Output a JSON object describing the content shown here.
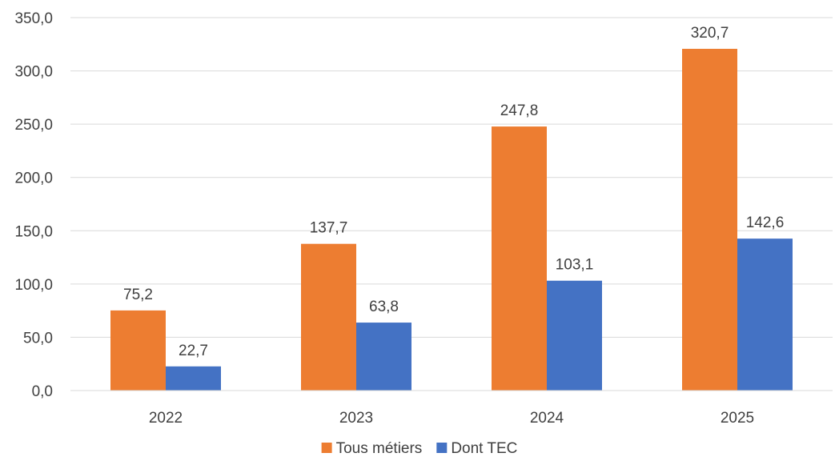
{
  "chart_data": {
    "type": "bar",
    "categories": [
      "2022",
      "2023",
      "2024",
      "2025"
    ],
    "series": [
      {
        "name": "Tous métiers",
        "color": "#ED7D31",
        "values": [
          75.2,
          137.7,
          247.8,
          320.7
        ],
        "labels": [
          "75,2",
          "137,7",
          "247,8",
          "320,7"
        ]
      },
      {
        "name": "Dont TEC",
        "color": "#4472C4",
        "values": [
          22.7,
          63.8,
          103.1,
          142.6
        ],
        "labels": [
          "22,7",
          "63,8",
          "103,1",
          "142,6"
        ]
      }
    ],
    "ylim": [
      0,
      350
    ],
    "y_ticks": [
      0,
      50,
      100,
      150,
      200,
      250,
      300,
      350
    ],
    "y_tick_labels": [
      "0,0",
      "50,0",
      "100,0",
      "150,0",
      "200,0",
      "250,0",
      "300,0",
      "350,0"
    ],
    "grid": true,
    "gridline_color": "#D9D9D9",
    "legend_position": "bottom"
  }
}
